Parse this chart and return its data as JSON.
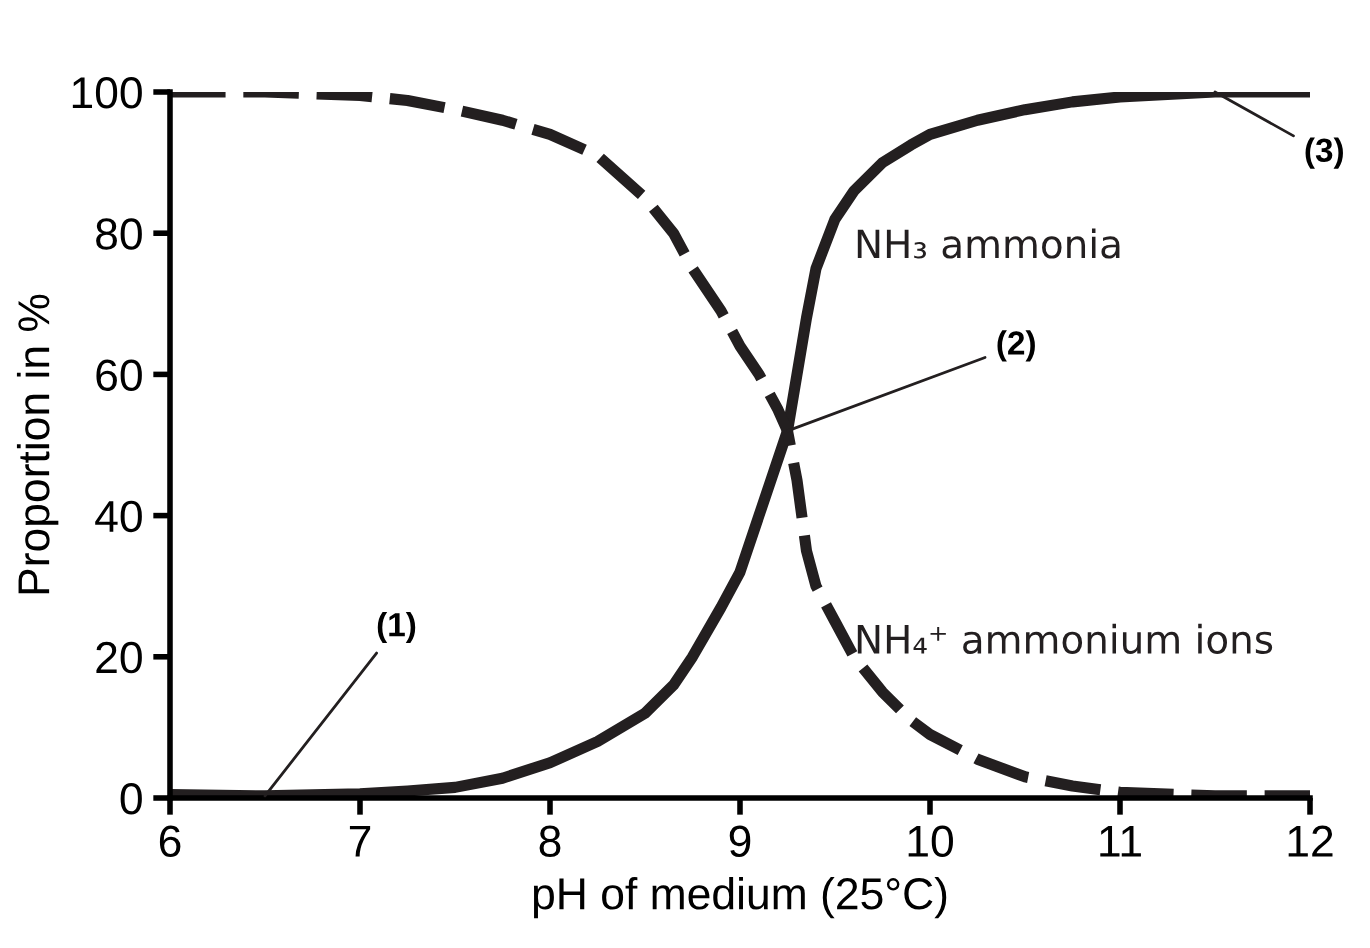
{
  "chart_data": {
    "type": "line",
    "xlabel": "pH of medium (25°C)",
    "ylabel": "Proportion in %",
    "xlim": [
      6,
      12
    ],
    "ylim": [
      0,
      100
    ],
    "xticks": [
      6,
      7,
      8,
      9,
      10,
      11,
      12
    ],
    "yticks": [
      0,
      20,
      40,
      60,
      80,
      100
    ],
    "grid": false,
    "legend": false,
    "marker": "none",
    "series": [
      {
        "name": "NH₃ ammonia",
        "color": "#231f20",
        "line_style": "solid",
        "x": [
          6,
          6.5,
          7,
          7.25,
          7.5,
          7.75,
          8,
          8.25,
          8.5,
          8.65,
          8.75,
          8.9,
          9,
          9.1,
          9.2,
          9.25,
          9.3,
          9.35,
          9.4,
          9.5,
          9.6,
          9.75,
          9.9,
          10,
          10.25,
          10.5,
          10.75,
          11,
          11.5,
          12
        ],
        "values": [
          0.5,
          0.3,
          0.6,
          1,
          1.5,
          2.8,
          5,
          8,
          12,
          16,
          20,
          27,
          32,
          40,
          48,
          52,
          60,
          68,
          75,
          82,
          86,
          90,
          92.5,
          94,
          96,
          97.5,
          98.6,
          99.3,
          100,
          100
        ]
      },
      {
        "name": "NH₄⁺ ammonium ions",
        "color": "#231f20",
        "line_style": "dashed",
        "x": [
          6,
          6.5,
          7,
          7.25,
          7.5,
          7.75,
          8,
          8.25,
          8.5,
          8.65,
          8.75,
          8.9,
          9,
          9.1,
          9.2,
          9.25,
          9.3,
          9.35,
          9.4,
          9.5,
          9.6,
          9.75,
          9.9,
          10,
          10.25,
          10.5,
          10.75,
          11,
          11.5,
          12
        ],
        "values": [
          100,
          100,
          99.5,
          98.8,
          97.5,
          96,
          94,
          91,
          85,
          80,
          75,
          69,
          64,
          60,
          55,
          52,
          45,
          35,
          30,
          25,
          20,
          15,
          11,
          9,
          5.5,
          3,
          1.7,
          0.8,
          0.3,
          0.3
        ]
      }
    ],
    "annotations": [
      {
        "text": "(1)",
        "x": 6.5,
        "y": 0.3
      },
      {
        "text": "(2)",
        "x": 9.25,
        "y": 52
      },
      {
        "text": "(3)",
        "x": 11.5,
        "y": 100
      }
    ]
  }
}
